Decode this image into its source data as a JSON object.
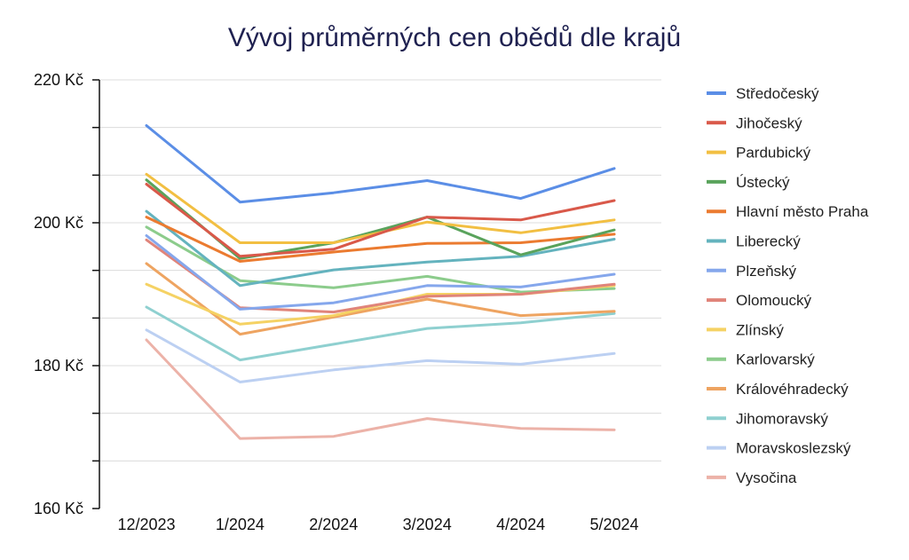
{
  "chart_data": {
    "type": "line",
    "title": "Vývoj průměrných cen obědů dle krajů",
    "xlabel": "",
    "ylabel": "",
    "ylim": [
      160,
      220
    ],
    "y_unit_suffix": " Kč",
    "y_major_ticks": [
      160,
      180,
      200,
      220
    ],
    "y_minor_step": 6.667,
    "grid": true,
    "legend_position": "right",
    "categories": [
      "12/2023",
      "1/2024",
      "2/2024",
      "3/2024",
      "4/2024",
      "5/2024"
    ],
    "series": [
      {
        "name": "Středočeský",
        "color": "#5b8ee6",
        "values": [
          213.6,
          202.9,
          204.2,
          205.9,
          203.4,
          207.6
        ]
      },
      {
        "name": "Jihočeský",
        "color": "#d9594a",
        "values": [
          205.4,
          195.3,
          196.3,
          200.8,
          200.4,
          203.1
        ]
      },
      {
        "name": "Pardubický",
        "color": "#f2bf42",
        "values": [
          206.8,
          197.2,
          197.2,
          200.1,
          198.6,
          200.4
        ]
      },
      {
        "name": "Ústecký",
        "color": "#5aa35c",
        "values": [
          206.0,
          195.0,
          197.2,
          200.8,
          195.5,
          199.0
        ]
      },
      {
        "name": "Hlavní město Praha",
        "color": "#eb7b30",
        "values": [
          200.8,
          194.6,
          195.9,
          197.1,
          197.2,
          198.4
        ]
      },
      {
        "name": "Liberecký",
        "color": "#64b3be",
        "values": [
          201.6,
          191.2,
          193.4,
          194.5,
          195.3,
          197.7
        ]
      },
      {
        "name": "Plzeňský",
        "color": "#85a7ec",
        "values": [
          198.2,
          187.9,
          188.8,
          191.2,
          191.0,
          192.8
        ]
      },
      {
        "name": "Olomoucký",
        "color": "#e0847a",
        "values": [
          197.6,
          188.1,
          187.5,
          189.7,
          190.0,
          191.4
        ]
      },
      {
        "name": "Zlínský",
        "color": "#f5d264",
        "values": [
          191.4,
          185.8,
          187.0,
          190.0,
          190.0,
          191.2
        ]
      },
      {
        "name": "Karlovarský",
        "color": "#8ccc8c",
        "values": [
          199.4,
          191.9,
          190.9,
          192.5,
          190.3,
          190.8
        ]
      },
      {
        "name": "Královéhradecký",
        "color": "#eea461",
        "values": [
          194.3,
          184.4,
          186.8,
          189.3,
          187.0,
          187.6
        ]
      },
      {
        "name": "Jihomoravský",
        "color": "#8fd0d0",
        "values": [
          188.2,
          180.8,
          183.0,
          185.2,
          186.0,
          187.3
        ]
      },
      {
        "name": "Moravskoslezský",
        "color": "#bcd0f2",
        "values": [
          185.0,
          177.7,
          179.4,
          180.7,
          180.2,
          181.7
        ]
      },
      {
        "name": "Vysočina",
        "color": "#ecb2a8",
        "values": [
          183.6,
          169.8,
          170.1,
          172.6,
          171.2,
          171.0
        ]
      }
    ]
  }
}
